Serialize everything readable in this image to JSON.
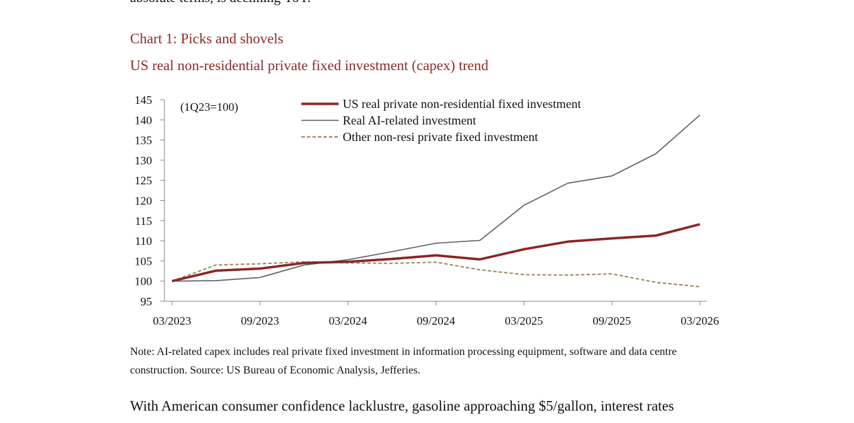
{
  "page": {
    "prev_text": "absolute terms, is declining YoY.",
    "note": "Note: AI-related capex includes real private fixed investment in information processing equipment, software and data centre construction. Source: US Bureau of Economic Analysis, Jefferies.",
    "next_text": "With American consumer confidence lacklustre, gasoline approaching $5/gallon, interest rates"
  },
  "chart_data": {
    "type": "line",
    "title": "Chart 1: Picks and shovels",
    "subtitle": "US real non-residential private fixed investment (capex) trend",
    "annotation": "(1Q23=100)",
    "ylim": [
      95,
      145
    ],
    "yticks": [
      "145",
      "140",
      "135",
      "130",
      "125",
      "120",
      "115",
      "110",
      "105",
      "100",
      "95"
    ],
    "x": [
      "03/2023",
      "06/2023",
      "09/2023",
      "12/2023",
      "03/2024",
      "06/2024",
      "09/2024",
      "12/2024",
      "03/2025",
      "06/2025",
      "09/2025",
      "12/2025",
      "03/2026"
    ],
    "xtick_labels": [
      "03/2023",
      "09/2023",
      "03/2024",
      "09/2024",
      "03/2025",
      "09/2025",
      "03/2026"
    ],
    "legend_position": "top-center",
    "series": [
      {
        "name": "US real private non-residential fixed investment",
        "color": "#8b2424",
        "style": "solid-thick",
        "values": [
          100,
          102.6,
          103.1,
          104.5,
          104.8,
          105.5,
          106.4,
          105.4,
          107.9,
          109.8,
          110.6,
          111.3,
          114.1
        ]
      },
      {
        "name": "Real AI-related investment",
        "color": "#5a6068",
        "style": "solid-thin",
        "values": [
          100,
          100.1,
          100.9,
          104.0,
          105.3,
          107.3,
          109.4,
          110.1,
          118.8,
          124.3,
          126.1,
          131.6,
          141.2
        ]
      },
      {
        "name": "Other non-resi private fixed investment",
        "color": "#a08a62",
        "style": "dashed",
        "values": [
          100,
          104.0,
          104.3,
          104.8,
          104.5,
          104.4,
          104.7,
          102.8,
          101.6,
          101.5,
          101.8,
          99.7,
          98.6
        ]
      }
    ]
  }
}
